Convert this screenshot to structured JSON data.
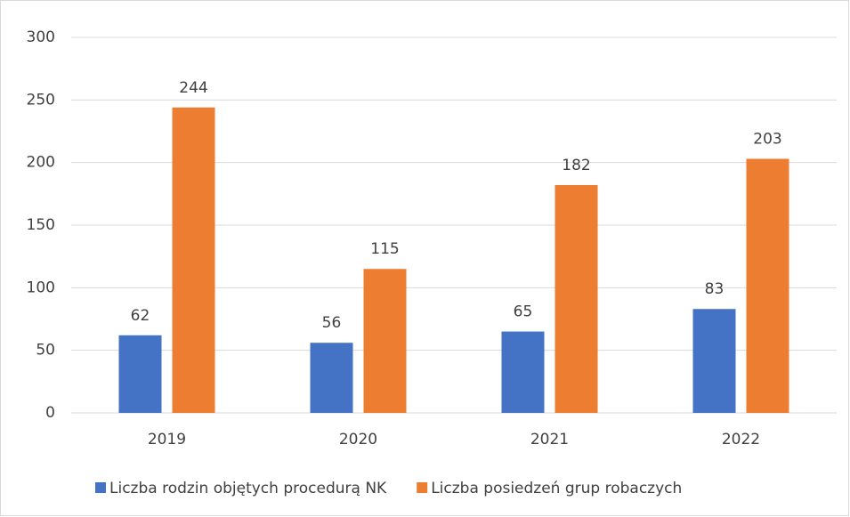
{
  "chart_data": {
    "type": "bar",
    "categories": [
      "2019",
      "2020",
      "2021",
      "2022"
    ],
    "series": [
      {
        "name": "Liczba rodzin objętych procedurą NK",
        "color": "#4472c4",
        "values": [
          62,
          56,
          65,
          83
        ]
      },
      {
        "name": "Liczba posiedzeń grup robaczych",
        "color": "#ed7d31",
        "values": [
          244,
          115,
          182,
          203
        ]
      }
    ],
    "ylim": [
      0,
      300
    ],
    "yticks": [
      0,
      50,
      100,
      150,
      200,
      250,
      300
    ],
    "grid": true,
    "legend": "bottom"
  }
}
